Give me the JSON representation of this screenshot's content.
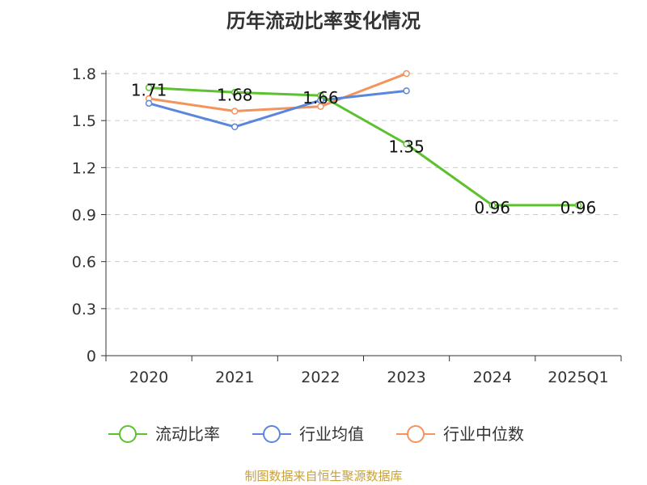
{
  "chart_data": {
    "type": "line",
    "title": "历年流动比率变化情况",
    "categories": [
      "2020",
      "2021",
      "2022",
      "2023",
      "2024",
      "2025Q1"
    ],
    "yticks": [
      "0",
      "0.3",
      "0.6",
      "0.9",
      "1.2",
      "1.5",
      "1.8"
    ],
    "ylim": [
      0,
      1.8
    ],
    "grid": true,
    "legend_position": "bottom",
    "series": [
      {
        "name": "流动比率",
        "color": "#5cc12f",
        "values": [
          1.71,
          1.68,
          1.66,
          1.35,
          0.96,
          0.96
        ],
        "labels": [
          "1.71",
          "1.68",
          "1.66",
          "1.35",
          "0.96",
          "0.96"
        ]
      },
      {
        "name": "行业均值",
        "color": "#5b86db",
        "values": [
          1.61,
          1.46,
          1.63,
          1.69,
          null,
          null
        ]
      },
      {
        "name": "行业中位数",
        "color": "#f5935c",
        "values": [
          1.64,
          1.56,
          1.59,
          1.8,
          null,
          null
        ]
      }
    ]
  },
  "source": "制图数据来自恒生聚源数据库"
}
